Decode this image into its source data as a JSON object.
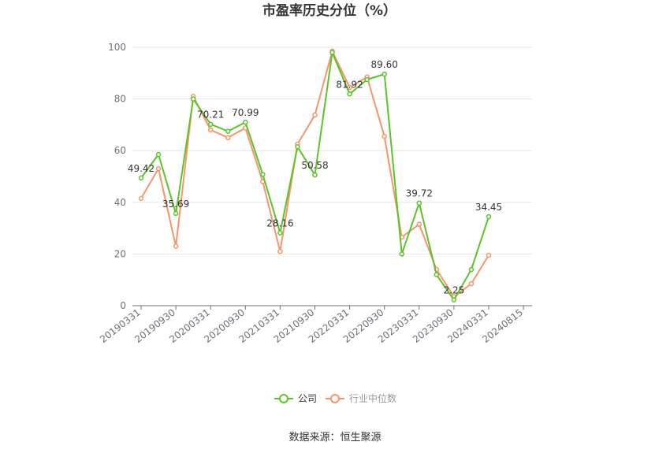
{
  "chart_data": {
    "type": "line",
    "title": "市盈率历史分位（%）",
    "source": "数据来源：恒生聚源",
    "ylim": [
      0,
      100
    ],
    "yticks": [
      0,
      20,
      40,
      60,
      80,
      100
    ],
    "grid": true,
    "legend_position": "bottom",
    "x_tick_labels": [
      "20190331",
      "20190930",
      "20200331",
      "20200930",
      "20210331",
      "20210930",
      "20220331",
      "20220930",
      "20230331",
      "20230930",
      "20240331",
      "20240815"
    ],
    "x": [
      "20190331",
      "20190630",
      "20190930",
      "20191231",
      "20200331",
      "20200630",
      "20200930",
      "20201231",
      "20210331",
      "20210630",
      "20210930",
      "20211231",
      "20220331",
      "20220630",
      "20220930",
      "20221231",
      "20230331",
      "20230630",
      "20230930",
      "20231231",
      "20240331"
    ],
    "series": [
      {
        "name": "公司",
        "color": "#5ac428",
        "values": [
          49.42,
          58.5,
          35.69,
          80.0,
          70.21,
          67.5,
          70.99,
          50.8,
          28.16,
          61.5,
          50.58,
          98.0,
          81.92,
          87.5,
          89.6,
          20.0,
          39.72,
          12.0,
          2.25,
          14.0,
          34.45
        ]
      },
      {
        "name": "行业中位数",
        "color": "#f5956a",
        "values": [
          41.5,
          53.0,
          23.0,
          81.0,
          68.0,
          65.0,
          68.8,
          48.0,
          21.0,
          62.5,
          73.8,
          98.5,
          84.5,
          88.5,
          65.5,
          26.5,
          31.5,
          14.0,
          3.5,
          8.5,
          19.5
        ]
      }
    ],
    "data_labels": [
      {
        "index": 0,
        "text": "49.42"
      },
      {
        "index": 2,
        "text": "35.69"
      },
      {
        "index": 4,
        "text": "70.21"
      },
      {
        "index": 6,
        "text": "70.99"
      },
      {
        "index": 8,
        "text": "28.16"
      },
      {
        "index": 10,
        "text": "50.58"
      },
      {
        "index": 12,
        "text": "81.92"
      },
      {
        "index": 14,
        "text": "89.60"
      },
      {
        "index": 16,
        "text": "39.72"
      },
      {
        "index": 18,
        "text": "2.25"
      },
      {
        "index": 20,
        "text": "34.45"
      }
    ]
  }
}
